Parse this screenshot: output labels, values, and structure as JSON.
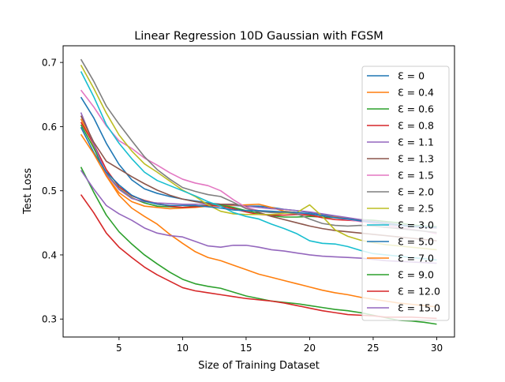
{
  "chart_data": {
    "type": "line",
    "title": "Linear Regression 10D Gaussian with FGSM",
    "xlabel": "Size of Training Dataset",
    "ylabel": "Test Loss",
    "xlim": [
      0.6,
      31.4
    ],
    "ylim": [
      0.272,
      0.726
    ],
    "xticks": [
      5,
      10,
      15,
      20,
      25,
      30
    ],
    "yticks": [
      0.3,
      0.4,
      0.5,
      0.6,
      0.7
    ],
    "xtick_labels": [
      "5",
      "10",
      "15",
      "20",
      "25",
      "30"
    ],
    "ytick_labels": [
      "0.3",
      "0.4",
      "0.5",
      "0.6",
      "0.7"
    ],
    "grid": false,
    "legend_position": "right",
    "x": [
      2,
      3,
      4,
      5,
      6,
      7,
      8,
      9,
      10,
      11,
      12,
      13,
      14,
      15,
      16,
      17,
      18,
      19,
      20,
      21,
      22,
      23,
      24,
      25,
      26,
      27,
      28,
      29,
      30
    ],
    "series": [
      {
        "name": "Ɛ = 0",
        "color": "#1f77b4",
        "values": [
          0.646,
          0.614,
          0.574,
          0.541,
          0.517,
          0.503,
          0.496,
          0.491,
          0.487,
          0.484,
          0.481,
          0.479,
          0.477,
          0.476,
          0.476,
          0.474,
          0.471,
          0.469,
          0.466,
          0.463,
          0.46,
          0.457,
          0.454,
          0.451,
          0.448,
          0.446,
          0.444,
          0.443,
          0.442
        ]
      },
      {
        "name": "Ɛ = 0.4",
        "color": "#ff7f0e",
        "values": [
          0.612,
          0.571,
          0.523,
          0.497,
          0.483,
          0.476,
          0.474,
          0.472,
          0.473,
          0.474,
          0.476,
          0.477,
          0.477,
          0.478,
          0.479,
          0.474,
          0.468,
          0.466,
          0.463,
          0.461,
          0.459,
          0.457,
          0.454,
          0.452,
          0.449,
          0.447,
          0.445,
          0.444,
          0.443
        ]
      },
      {
        "name": "Ɛ = 0.6",
        "color": "#2ca02c",
        "values": [
          0.603,
          0.567,
          0.527,
          0.503,
          0.489,
          0.481,
          0.476,
          0.475,
          0.474,
          0.476,
          0.477,
          0.478,
          0.474,
          0.469,
          0.465,
          0.461,
          0.459,
          0.459,
          0.46,
          0.459,
          0.458,
          0.456,
          0.455,
          0.454,
          0.452,
          0.45,
          0.447,
          0.445,
          0.444
        ]
      },
      {
        "name": "Ɛ = 0.8",
        "color": "#d62728",
        "values": [
          0.607,
          0.573,
          0.533,
          0.506,
          0.492,
          0.485,
          0.48,
          0.476,
          0.474,
          0.475,
          0.477,
          0.476,
          0.472,
          0.467,
          0.463,
          0.462,
          0.462,
          0.463,
          0.462,
          0.458,
          0.455,
          0.454,
          0.453,
          0.451,
          0.449,
          0.447,
          0.445,
          0.443,
          0.442
        ]
      },
      {
        "name": "Ɛ = 1.1",
        "color": "#9467bd",
        "values": [
          0.622,
          0.573,
          0.526,
          0.502,
          0.488,
          0.483,
          0.481,
          0.48,
          0.479,
          0.479,
          0.479,
          0.479,
          0.478,
          0.476,
          0.474,
          0.472,
          0.471,
          0.469,
          0.467,
          0.464,
          0.461,
          0.458,
          0.455,
          0.452,
          0.45,
          0.447,
          0.445,
          0.443,
          0.442
        ]
      },
      {
        "name": "Ɛ = 1.3",
        "color": "#8c564b",
        "values": [
          0.617,
          0.576,
          0.546,
          0.534,
          0.522,
          0.511,
          0.501,
          0.493,
          0.487,
          0.483,
          0.48,
          0.479,
          0.479,
          0.475,
          0.466,
          0.46,
          0.455,
          0.45,
          0.445,
          0.441,
          0.438,
          0.436,
          0.434,
          0.432,
          0.43,
          0.428,
          0.426,
          0.424,
          0.422
        ]
      },
      {
        "name": "Ɛ = 1.5",
        "color": "#e377c2",
        "values": [
          0.657,
          0.631,
          0.601,
          0.578,
          0.566,
          0.551,
          0.54,
          0.528,
          0.518,
          0.512,
          0.508,
          0.5,
          0.486,
          0.474,
          0.469,
          0.467,
          0.466,
          0.465,
          0.464,
          0.461,
          0.458,
          0.455,
          0.452,
          0.449,
          0.446,
          0.443,
          0.44,
          0.437,
          0.433
        ]
      },
      {
        "name": "Ɛ = 2.0",
        "color": "#7f7f7f",
        "values": [
          0.705,
          0.671,
          0.632,
          0.604,
          0.578,
          0.553,
          0.533,
          0.518,
          0.505,
          0.499,
          0.494,
          0.491,
          0.482,
          0.472,
          0.468,
          0.466,
          0.466,
          0.464,
          0.456,
          0.449,
          0.446,
          0.445,
          0.446,
          0.445,
          0.443,
          0.441,
          0.439,
          0.437,
          0.435
        ]
      },
      {
        "name": "Ɛ = 2.5",
        "color": "#bcbd22",
        "values": [
          0.696,
          0.66,
          0.621,
          0.587,
          0.562,
          0.542,
          0.529,
          0.515,
          0.501,
          0.491,
          0.478,
          0.468,
          0.464,
          0.463,
          0.463,
          0.463,
          0.465,
          0.466,
          0.478,
          0.46,
          0.439,
          0.429,
          0.423,
          0.419,
          0.416,
          0.414,
          0.412,
          0.41,
          0.408
        ]
      },
      {
        "name": "Ɛ = 3.0",
        "color": "#17becf",
        "values": [
          0.686,
          0.647,
          0.603,
          0.574,
          0.55,
          0.529,
          0.516,
          0.508,
          0.5,
          0.492,
          0.483,
          0.476,
          0.466,
          0.46,
          0.456,
          0.448,
          0.441,
          0.433,
          0.422,
          0.418,
          0.417,
          0.413,
          0.407,
          0.402,
          0.4,
          0.398,
          0.396,
          0.394,
          0.392
        ]
      },
      {
        "name": "Ɛ = 5.0",
        "color": "#1f77b4",
        "values": [
          0.599,
          0.56,
          0.529,
          0.509,
          0.493,
          0.484,
          0.479,
          0.477,
          0.477,
          0.477,
          0.475,
          0.473,
          0.47,
          0.469,
          0.469,
          0.468,
          0.467,
          0.466,
          0.464,
          0.461,
          0.458,
          0.456,
          0.453,
          0.451,
          0.449,
          0.447,
          0.445,
          0.444,
          0.443
        ]
      },
      {
        "name": "Ɛ = 7.0",
        "color": "#ff7f0e",
        "values": [
          0.588,
          0.558,
          0.523,
          0.493,
          0.473,
          0.46,
          0.448,
          0.432,
          0.418,
          0.405,
          0.396,
          0.391,
          0.384,
          0.377,
          0.37,
          0.365,
          0.36,
          0.355,
          0.35,
          0.345,
          0.341,
          0.338,
          0.334,
          0.331,
          0.328,
          0.325,
          0.323,
          0.321,
          0.319
        ]
      },
      {
        "name": "Ɛ = 9.0",
        "color": "#2ca02c",
        "values": [
          0.537,
          0.498,
          0.462,
          0.436,
          0.417,
          0.4,
          0.386,
          0.373,
          0.362,
          0.355,
          0.351,
          0.348,
          0.342,
          0.336,
          0.332,
          0.328,
          0.326,
          0.324,
          0.321,
          0.318,
          0.315,
          0.313,
          0.31,
          0.306,
          0.302,
          0.298,
          0.297,
          0.295,
          0.292
        ]
      },
      {
        "name": "Ɛ = 12.0",
        "color": "#d62728",
        "values": [
          0.494,
          0.466,
          0.434,
          0.412,
          0.396,
          0.381,
          0.369,
          0.359,
          0.349,
          0.344,
          0.341,
          0.338,
          0.335,
          0.332,
          0.33,
          0.328,
          0.325,
          0.321,
          0.317,
          0.313,
          0.31,
          0.307,
          0.306,
          0.305,
          0.303,
          0.303,
          0.303,
          0.302,
          0.301
        ]
      },
      {
        "name": "Ɛ = 15.0",
        "color": "#9467bd",
        "values": [
          0.532,
          0.503,
          0.477,
          0.464,
          0.454,
          0.442,
          0.434,
          0.43,
          0.428,
          0.421,
          0.414,
          0.412,
          0.415,
          0.415,
          0.412,
          0.408,
          0.406,
          0.403,
          0.4,
          0.398,
          0.397,
          0.396,
          0.395,
          0.393,
          0.391,
          0.39,
          0.389,
          0.388,
          0.387
        ]
      }
    ]
  }
}
